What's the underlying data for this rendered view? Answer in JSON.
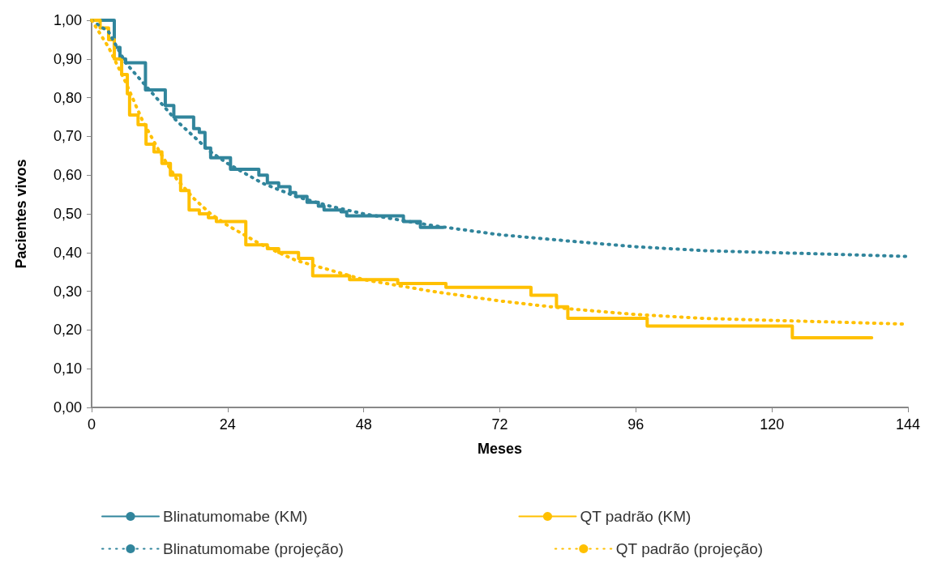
{
  "chart_data": {
    "type": "line",
    "xlabel": "Meses",
    "ylabel": "Pacientes vivos",
    "xlim": [
      0,
      144
    ],
    "xticks": [
      0,
      24,
      48,
      72,
      96,
      120,
      144
    ],
    "ylim": [
      0,
      1
    ],
    "yticks": [
      {
        "value": 0,
        "label": "0,00"
      },
      {
        "value": 0.1,
        "label": "0,10"
      },
      {
        "value": 0.2,
        "label": "0,20"
      },
      {
        "value": 0.3,
        "label": "0,30"
      },
      {
        "value": 0.4,
        "label": "0,40"
      },
      {
        "value": 0.5,
        "label": "0,50"
      },
      {
        "value": 0.6,
        "label": "0,60"
      },
      {
        "value": 0.7,
        "label": "0,70"
      },
      {
        "value": 0.8,
        "label": "0,80"
      },
      {
        "value": 0.9,
        "label": "0,90"
      },
      {
        "value": 1,
        "label": "1,00"
      }
    ],
    "grid": false,
    "legend": "bottom",
    "marker": "none",
    "series": [
      {
        "name": "Blinatumomabe (KM)",
        "type": "step",
        "line_style": "solid",
        "color": "#31859c",
        "x": [
          0,
          4,
          5,
          6,
          7,
          9.5,
          13,
          14.5,
          18,
          19,
          20,
          21,
          24.5,
          29.5,
          31,
          33,
          35,
          36,
          38,
          40,
          41,
          44,
          45,
          55,
          58,
          62
        ],
        "values": [
          1,
          0.93,
          0.9,
          0.89,
          0.89,
          0.82,
          0.78,
          0.75,
          0.72,
          0.71,
          0.67,
          0.645,
          0.615,
          0.6,
          0.58,
          0.57,
          0.555,
          0.545,
          0.53,
          0.52,
          0.51,
          0.505,
          0.495,
          0.48,
          0.465,
          0.465
        ]
      },
      {
        "name": "QT padrão (KM)",
        "type": "step",
        "line_style": "solid",
        "color": "#ffc000",
        "x": [
          0,
          1.5,
          3,
          4,
          5.3,
          6.3,
          6.7,
          8.2,
          9.6,
          11,
          12.4,
          13.9,
          15.7,
          17.2,
          19,
          20.6,
          22,
          27.2,
          31,
          33,
          36.5,
          39,
          45.5,
          54,
          62.5,
          77.5,
          82,
          84,
          98,
          123.6,
          137.6
        ],
        "values": [
          1,
          0.98,
          0.95,
          0.9,
          0.86,
          0.81,
          0.755,
          0.73,
          0.68,
          0.66,
          0.63,
          0.6,
          0.56,
          0.51,
          0.5,
          0.49,
          0.48,
          0.42,
          0.41,
          0.4,
          0.385,
          0.34,
          0.33,
          0.32,
          0.31,
          0.29,
          0.26,
          0.23,
          0.21,
          0.18,
          0.18
        ]
      },
      {
        "name": "Blinatumomabe (projeção)",
        "type": "line",
        "line_style": "dotted",
        "color": "#31859c",
        "x": [
          0,
          3,
          6,
          9,
          12,
          15,
          18,
          21,
          24,
          30,
          36,
          42,
          48,
          60,
          72,
          84,
          96,
          108,
          120,
          132,
          144
        ],
        "values": [
          1,
          0.97,
          0.89,
          0.84,
          0.79,
          0.74,
          0.7,
          0.66,
          0.63,
          0.58,
          0.545,
          0.52,
          0.5,
          0.47,
          0.446,
          0.43,
          0.415,
          0.405,
          0.4,
          0.395,
          0.39
        ]
      },
      {
        "name": "QT padrão (projeção)",
        "type": "line",
        "line_style": "dotted",
        "color": "#ffc000",
        "x": [
          0,
          3,
          6,
          9,
          12,
          15,
          18,
          21,
          24,
          30,
          36,
          42,
          48,
          60,
          72,
          84,
          96,
          108,
          120,
          132,
          144
        ],
        "values": [
          1,
          0.93,
          0.84,
          0.74,
          0.66,
          0.59,
          0.54,
          0.5,
          0.47,
          0.42,
          0.38,
          0.355,
          0.33,
          0.3,
          0.275,
          0.255,
          0.24,
          0.23,
          0.225,
          0.22,
          0.215
        ]
      }
    ]
  }
}
